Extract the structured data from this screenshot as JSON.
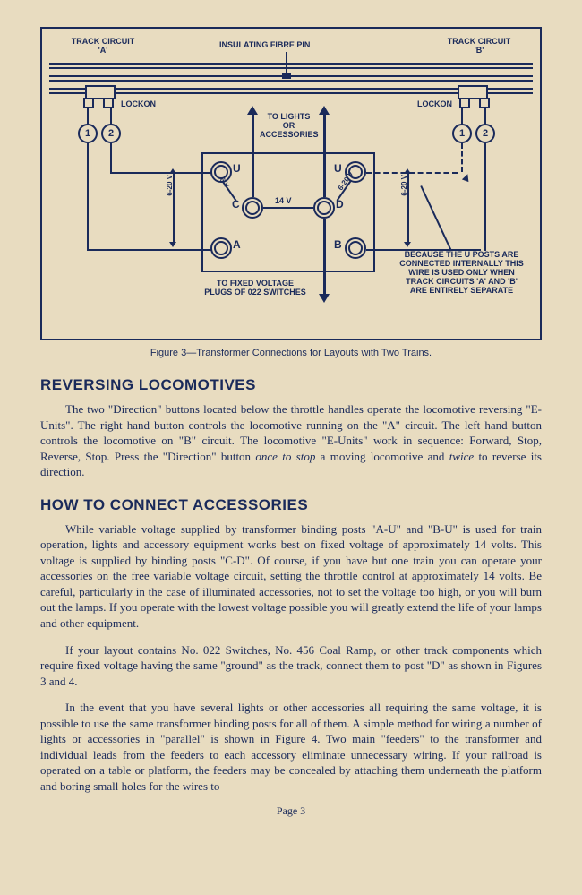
{
  "diagram": {
    "labels": {
      "track_a": "TRACK CIRCUIT\n'A'",
      "track_b": "TRACK CIRCUIT\n'B'",
      "fibre_pin": "INSULATING FIBRE PIN",
      "lockon_a": "LOCKON",
      "lockon_b": "LOCKON",
      "to_lights": "TO LIGHTS\nOR\nACCESSORIES",
      "to_fixed": "TO FIXED VOLTAGE\nPLUGS OF 022 SWITCHES",
      "u_note": "BECAUSE THE U POSTS ARE\nCONNECTED INTERNALLY THIS\nWIRE IS USED ONLY WHEN\nTRACK CIRCUITS 'A' AND 'B'\nARE ENTIRELY SEPARATE",
      "num1a": "1",
      "num2a": "2",
      "num1b": "1",
      "num2b": "2",
      "post_u1": "U",
      "post_u2": "U",
      "post_c": "C",
      "post_d": "D",
      "post_a": "A",
      "post_b": "B",
      "v14": "14 V",
      "v6": "6 V",
      "v20_1": "6-20 V",
      "v20_2": "6-20 V",
      "v20_3": "6-20 V"
    },
    "caption": "Figure 3—Transformer Connections for Layouts with Two Trains.",
    "colors": {
      "ink": "#1a2a5a",
      "paper": "#e8dcc0"
    }
  },
  "section1": {
    "heading": "REVERSING LOCOMOTIVES",
    "para1": "The two \"Direction\" buttons located below the throttle handles operate the locomotive reversing \"E-Units\". The right hand button controls the locomotive running on the \"A\" circuit. The left hand button controls the locomotive on \"B\" circuit. The locomotive \"E-Units\" work in sequence: Forward, Stop, Reverse, Stop. Press the \"Direction\" button ",
    "para1_em1": "once to stop",
    "para1_mid": " a moving locomotive and ",
    "para1_em2": "twice",
    "para1_end": " to reverse its direction."
  },
  "section2": {
    "heading": "HOW TO CONNECT ACCESSORIES",
    "para1": "While variable voltage supplied by transformer binding posts \"A-U\" and \"B-U\" is used for train operation, lights and accessory equipment works best on fixed voltage of approximately 14 volts. This voltage is supplied by binding posts \"C-D\". Of course, if you have but one train you can operate your accessories on the free variable voltage circuit, setting the throttle control at approximately 14 volts. Be careful, particularly in the case of illuminated accessories, not to set the voltage too high, or you will burn out the lamps. If you operate with the lowest voltage possible you will greatly extend the life of your lamps and other equipment.",
    "para2": "If your layout contains No. 022 Switches, No. 456 Coal Ramp, or other track components which require fixed voltage having the same \"ground\" as the track, connect them to post \"D\" as shown in Figures 3 and 4.",
    "para3": "In the event that you have several lights or other accessories all requiring the same voltage, it is possible to use the same transformer binding posts for all of them. A simple method for wiring a number of lights or accessories in \"parallel\" is shown in Figure 4. Two main \"feeders\" to the transformer and individual leads from the feeders to each accessory eliminate unnecessary wiring. If your railroad is operated on a table or platform, the feeders may be concealed by attaching them underneath the platform and boring small holes for the wires to"
  },
  "page_number": "Page 3"
}
